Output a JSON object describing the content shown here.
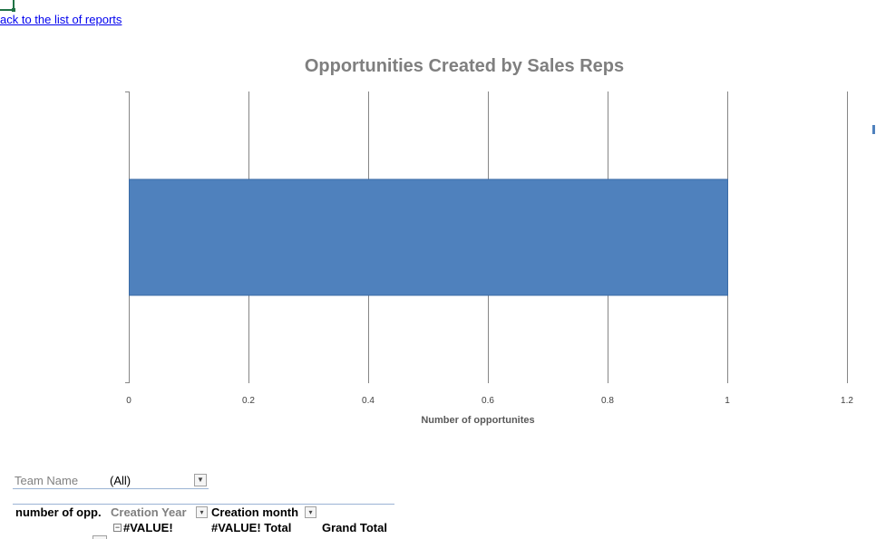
{
  "link": {
    "back": "ack to the list of reports"
  },
  "chart_data": {
    "type": "bar",
    "orientation": "horizontal",
    "title": "Opportunities Created by Sales Reps",
    "xlabel": "Number of opportunites",
    "ylabel": "",
    "categories": [
      ""
    ],
    "values": [
      1
    ],
    "xlim": [
      0,
      1.2
    ],
    "ticks": [
      "0",
      "0.2",
      "0.4",
      "0.6",
      "0.8",
      "1",
      "1.2"
    ],
    "tick_values": [
      0,
      0.2,
      0.4,
      0.6,
      0.8,
      1.0,
      1.2
    ],
    "grid": true,
    "legend": "none",
    "bar_color": "#4f81bd"
  },
  "filter": {
    "label": "Team Name",
    "value": "(All)"
  },
  "pivot": {
    "values_header": "number of opp.",
    "column_field_1": "Creation Year",
    "column_field_2": "Creation month",
    "column_item": "#VALUE!",
    "column_item_total": "#VALUE! Total",
    "grand_total": "Grand Total"
  },
  "colors": {
    "accent": "#4f81bd",
    "link": "#0000ee",
    "cell_selection": "#217346"
  }
}
